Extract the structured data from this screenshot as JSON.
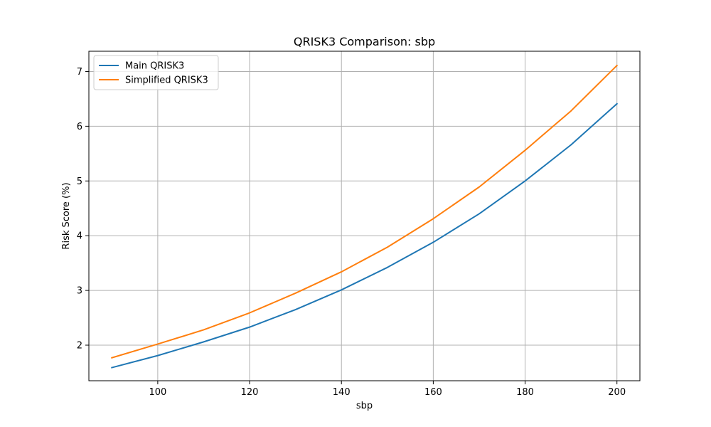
{
  "chart_data": {
    "type": "line",
    "title": "QRISK3 Comparison: sbp",
    "xlabel": "sbp",
    "ylabel": "Risk Score (%)",
    "x": [
      90,
      100,
      110,
      120,
      130,
      140,
      150,
      160,
      170,
      180,
      190,
      200
    ],
    "xlim": [
      85,
      205
    ],
    "ylim": [
      1.35,
      7.37
    ],
    "xticks": [
      100,
      120,
      140,
      160,
      180,
      200
    ],
    "yticks": [
      2,
      3,
      4,
      5,
      6,
      7
    ],
    "grid": true,
    "legend_position": "upper-left",
    "series": [
      {
        "name": "Main QRISK3",
        "color": "#1f77b4",
        "values": [
          1.59,
          1.81,
          2.06,
          2.33,
          2.65,
          3.01,
          3.42,
          3.88,
          4.4,
          5.0,
          5.66,
          6.41
        ]
      },
      {
        "name": "Simplified QRISK3",
        "color": "#ff7f0e",
        "values": [
          1.77,
          2.02,
          2.28,
          2.59,
          2.95,
          3.34,
          3.79,
          4.31,
          4.89,
          5.56,
          6.28,
          7.11
        ]
      }
    ]
  }
}
